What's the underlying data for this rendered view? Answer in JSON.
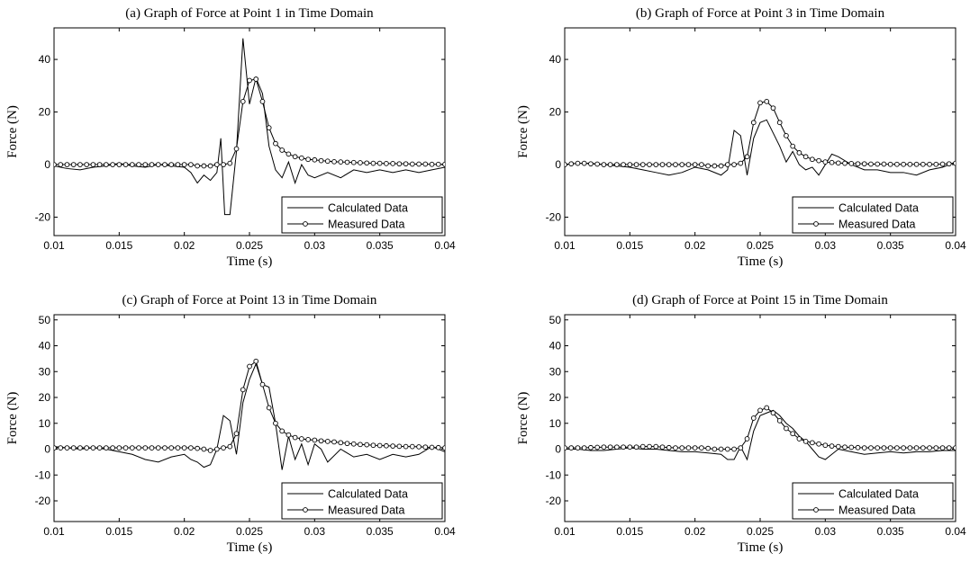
{
  "chart_data": [
    {
      "type": "line",
      "title": "(a) Graph of Force at Point 1 in Time Domain",
      "xlabel": "Time (s)",
      "ylabel": "Force (N)",
      "xlim": [
        0.01,
        0.04
      ],
      "ylim": [
        -27,
        52
      ],
      "xticks": [
        0.01,
        0.015,
        0.02,
        0.025,
        0.03,
        0.035,
        0.04
      ],
      "xtick_labels": [
        "0.01",
        "0.015",
        "0.02",
        "0.025",
        "0.03",
        "0.035",
        "0.04"
      ],
      "yticks": [
        -20,
        0,
        20,
        40
      ],
      "ytick_labels": [
        "-20",
        "0",
        "20",
        "40"
      ],
      "legend_position": "bottom-right",
      "grid": false,
      "series": [
        {
          "name": "Calculated Data",
          "marker": "none",
          "x": [
            0.01,
            0.011,
            0.012,
            0.013,
            0.014,
            0.015,
            0.016,
            0.017,
            0.018,
            0.019,
            0.02,
            0.0205,
            0.021,
            0.0215,
            0.022,
            0.0225,
            0.0228,
            0.0231,
            0.0235,
            0.024,
            0.0245,
            0.025,
            0.0255,
            0.026,
            0.0265,
            0.027,
            0.0275,
            0.028,
            0.0285,
            0.029,
            0.0295,
            0.03,
            0.031,
            0.032,
            0.033,
            0.034,
            0.035,
            0.036,
            0.037,
            0.038,
            0.039,
            0.04
          ],
          "y": [
            -0.5,
            -1.5,
            -2,
            -1,
            -0.5,
            0.5,
            -0.5,
            -1,
            0,
            -0.5,
            -1,
            -3,
            -7,
            -4,
            -6,
            -3,
            10,
            -19,
            -19,
            5,
            48,
            23,
            33,
            27,
            7,
            -2,
            -5,
            1,
            -7,
            0,
            -4,
            -5,
            -3,
            -5,
            -2,
            -3,
            -2,
            -3,
            -2,
            -3,
            -2,
            -1
          ]
        },
        {
          "name": "Measured Data",
          "marker": "circle",
          "x": [
            0.01,
            0.0105,
            0.011,
            0.0115,
            0.012,
            0.0125,
            0.013,
            0.0135,
            0.014,
            0.0145,
            0.015,
            0.0155,
            0.016,
            0.0165,
            0.017,
            0.0175,
            0.018,
            0.0185,
            0.019,
            0.0195,
            0.02,
            0.0205,
            0.021,
            0.0215,
            0.022,
            0.0225,
            0.023,
            0.0235,
            0.024,
            0.0245,
            0.025,
            0.0255,
            0.026,
            0.0265,
            0.027,
            0.0275,
            0.028,
            0.0285,
            0.029,
            0.0295,
            0.03,
            0.0305,
            0.031,
            0.0315,
            0.032,
            0.0325,
            0.033,
            0.0335,
            0.034,
            0.0345,
            0.035,
            0.0355,
            0.036,
            0.0365,
            0.037,
            0.0375,
            0.038,
            0.0385,
            0.039,
            0.0395,
            0.04
          ],
          "y": [
            0,
            0,
            0,
            0,
            0,
            0,
            0,
            0,
            0,
            0,
            0,
            0,
            0,
            0,
            0,
            0,
            0,
            0,
            0,
            0,
            0,
            0,
            -0.5,
            -0.5,
            -0.5,
            0,
            0,
            0.5,
            6,
            24,
            32,
            32.5,
            24,
            14,
            8,
            5.5,
            4,
            3,
            2.5,
            2,
            1.8,
            1.5,
            1.3,
            1.1,
            1,
            0.9,
            0.8,
            0.7,
            0.6,
            0.5,
            0.5,
            0.4,
            0.4,
            0.3,
            0.3,
            0.2,
            0.2,
            0.2,
            0.1,
            0.1,
            0.1
          ]
        }
      ]
    },
    {
      "type": "line",
      "title": "(b) Graph of Force at Point 3 in Time Domain",
      "xlabel": "Time (s)",
      "ylabel": "Force (N)",
      "xlim": [
        0.01,
        0.04
      ],
      "ylim": [
        -27,
        52
      ],
      "xticks": [
        0.01,
        0.015,
        0.02,
        0.025,
        0.03,
        0.035,
        0.04
      ],
      "xtick_labels": [
        "0.01",
        "0.015",
        "0.02",
        "0.025",
        "0.03",
        "0.035",
        "0.04"
      ],
      "yticks": [
        -20,
        0,
        20,
        40
      ],
      "ytick_labels": [
        "-20",
        "0",
        "20",
        "40"
      ],
      "legend_position": "bottom-right",
      "grid": false,
      "series": [
        {
          "name": "Calculated Data",
          "marker": "none",
          "x": [
            0.01,
            0.011,
            0.012,
            0.013,
            0.014,
            0.015,
            0.016,
            0.017,
            0.018,
            0.019,
            0.02,
            0.021,
            0.022,
            0.0225,
            0.023,
            0.0235,
            0.024,
            0.0245,
            0.025,
            0.0255,
            0.026,
            0.0265,
            0.027,
            0.0275,
            0.028,
            0.0285,
            0.029,
            0.0295,
            0.03,
            0.0305,
            0.031,
            0.032,
            0.033,
            0.034,
            0.035,
            0.036,
            0.037,
            0.038,
            0.039,
            0.04
          ],
          "y": [
            0,
            0.5,
            0.5,
            0,
            -0.5,
            -1,
            -2,
            -3,
            -4,
            -3,
            -1,
            -2,
            -4,
            -2,
            13,
            11,
            -4,
            10,
            16,
            17,
            12,
            7,
            1,
            5,
            0,
            -2,
            -1,
            -4,
            0,
            4,
            3,
            0,
            -2,
            -2,
            -3,
            -3,
            -4,
            -2,
            -1,
            1
          ]
        },
        {
          "name": "Measured Data",
          "marker": "circle",
          "x": [
            0.01,
            0.0105,
            0.011,
            0.0115,
            0.012,
            0.0125,
            0.013,
            0.0135,
            0.014,
            0.0145,
            0.015,
            0.0155,
            0.016,
            0.0165,
            0.017,
            0.0175,
            0.018,
            0.0185,
            0.019,
            0.0195,
            0.02,
            0.0205,
            0.021,
            0.0215,
            0.022,
            0.0225,
            0.023,
            0.0235,
            0.024,
            0.0245,
            0.025,
            0.0255,
            0.026,
            0.0265,
            0.027,
            0.0275,
            0.028,
            0.0285,
            0.029,
            0.0295,
            0.03,
            0.0305,
            0.031,
            0.0315,
            0.032,
            0.0325,
            0.033,
            0.0335,
            0.034,
            0.0345,
            0.035,
            0.0355,
            0.036,
            0.0365,
            0.037,
            0.0375,
            0.038,
            0.0385,
            0.039,
            0.0395,
            0.04
          ],
          "y": [
            0,
            0.3,
            0.5,
            0.5,
            0.3,
            0.2,
            0,
            0,
            0,
            0,
            0,
            0,
            0,
            0,
            0,
            0,
            0,
            0,
            0,
            0,
            0,
            0,
            -0.5,
            -0.5,
            -0.5,
            0,
            0,
            0.5,
            3,
            16,
            23.5,
            24,
            21.5,
            16,
            11,
            7,
            4.5,
            3,
            2,
            1.5,
            1,
            0.8,
            0.6,
            0.5,
            0.4,
            0.3,
            0.3,
            0.2,
            0.2,
            0.2,
            0.1,
            0.1,
            0.1,
            0.1,
            0.1,
            0.1,
            0.1,
            0.1,
            0.2,
            0.3,
            0.5
          ]
        }
      ]
    },
    {
      "type": "line",
      "title": "(c) Graph of Force at Point 13 in Time Domain",
      "xlabel": "Time (s)",
      "ylabel": "Force (N)",
      "xlim": [
        0.01,
        0.04
      ],
      "ylim": [
        -28,
        52
      ],
      "xticks": [
        0.01,
        0.015,
        0.02,
        0.025,
        0.03,
        0.035,
        0.04
      ],
      "xtick_labels": [
        "0.01",
        "0.015",
        "0.02",
        "0.025",
        "0.03",
        "0.035",
        "0.04"
      ],
      "yticks": [
        -20,
        -10,
        0,
        10,
        20,
        30,
        40,
        50
      ],
      "ytick_labels": [
        "-20",
        "-10",
        "0",
        "10",
        "20",
        "30",
        "40",
        "50"
      ],
      "legend_position": "bottom-right",
      "grid": false,
      "series": [
        {
          "name": "Calculated Data",
          "marker": "none",
          "x": [
            0.01,
            0.011,
            0.012,
            0.013,
            0.014,
            0.015,
            0.016,
            0.017,
            0.018,
            0.019,
            0.02,
            0.0205,
            0.021,
            0.0215,
            0.022,
            0.0225,
            0.023,
            0.0235,
            0.024,
            0.0245,
            0.025,
            0.0255,
            0.026,
            0.0265,
            0.027,
            0.0275,
            0.028,
            0.0285,
            0.029,
            0.0295,
            0.03,
            0.0305,
            0.031,
            0.032,
            0.033,
            0.034,
            0.035,
            0.036,
            0.037,
            0.038,
            0.039,
            0.04
          ],
          "y": [
            1,
            0.5,
            0,
            0.5,
            0,
            -1,
            -2,
            -4,
            -5,
            -3,
            -2,
            -4,
            -5,
            -7,
            -6,
            0,
            13,
            11,
            -2,
            18,
            27,
            33,
            25,
            24,
            10,
            -8,
            5,
            -4,
            2,
            -6,
            2,
            0,
            -5,
            0,
            -3,
            -2,
            -4,
            -2,
            -3,
            -2,
            1,
            -1
          ]
        },
        {
          "name": "Measured Data",
          "marker": "circle",
          "x": [
            0.01,
            0.0105,
            0.011,
            0.0115,
            0.012,
            0.0125,
            0.013,
            0.0135,
            0.014,
            0.0145,
            0.015,
            0.0155,
            0.016,
            0.0165,
            0.017,
            0.0175,
            0.018,
            0.0185,
            0.019,
            0.0195,
            0.02,
            0.0205,
            0.021,
            0.0215,
            0.022,
            0.0225,
            0.023,
            0.0235,
            0.024,
            0.0245,
            0.025,
            0.0255,
            0.026,
            0.0265,
            0.027,
            0.0275,
            0.028,
            0.0285,
            0.029,
            0.0295,
            0.03,
            0.0305,
            0.031,
            0.0315,
            0.032,
            0.0325,
            0.033,
            0.0335,
            0.034,
            0.0345,
            0.035,
            0.0355,
            0.036,
            0.0365,
            0.037,
            0.0375,
            0.038,
            0.0385,
            0.039,
            0.0395,
            0.04
          ],
          "y": [
            0.5,
            0.5,
            0.5,
            0.5,
            0.5,
            0.5,
            0.5,
            0.5,
            0.5,
            0.5,
            0.5,
            0.5,
            0.5,
            0.5,
            0.5,
            0.5,
            0.5,
            0.5,
            0.5,
            0.5,
            0.5,
            0.5,
            0.3,
            0,
            -0.5,
            0,
            0.5,
            1,
            6,
            23,
            32,
            34,
            25,
            16,
            10,
            7,
            5.5,
            4.5,
            4,
            3.7,
            3.5,
            3.2,
            3,
            2.8,
            2.5,
            2.2,
            2,
            1.8,
            1.7,
            1.5,
            1.4,
            1.3,
            1.2,
            1.1,
            1,
            1,
            0.9,
            0.8,
            0.7,
            0.6,
            0.5
          ]
        }
      ]
    },
    {
      "type": "line",
      "title": "(d) Graph of Force at Point 15 in Time Domain",
      "xlabel": "Time (s)",
      "ylabel": "Force (N)",
      "xlim": [
        0.01,
        0.04
      ],
      "ylim": [
        -28,
        52
      ],
      "xticks": [
        0.01,
        0.015,
        0.02,
        0.025,
        0.03,
        0.035,
        0.04
      ],
      "xtick_labels": [
        "0.01",
        "0.015",
        "0.02",
        "0.025",
        "0.03",
        "0.035",
        "0.04"
      ],
      "yticks": [
        -20,
        -10,
        0,
        10,
        20,
        30,
        40,
        50
      ],
      "ytick_labels": [
        "-20",
        "-10",
        "0",
        "10",
        "20",
        "30",
        "40",
        "50"
      ],
      "legend_position": "bottom-right",
      "grid": false,
      "series": [
        {
          "name": "Calculated Data",
          "marker": "none",
          "x": [
            0.01,
            0.011,
            0.012,
            0.013,
            0.014,
            0.015,
            0.016,
            0.017,
            0.018,
            0.019,
            0.02,
            0.021,
            0.022,
            0.0225,
            0.023,
            0.0235,
            0.024,
            0.0245,
            0.025,
            0.0255,
            0.026,
            0.0265,
            0.027,
            0.0275,
            0.028,
            0.0285,
            0.029,
            0.0295,
            0.03,
            0.0305,
            0.031,
            0.032,
            0.033,
            0.034,
            0.035,
            0.036,
            0.037,
            0.038,
            0.039,
            0.04
          ],
          "y": [
            0,
            0,
            -0.5,
            -0.5,
            0,
            0.5,
            0,
            0,
            -0.5,
            -1,
            -1,
            -1.5,
            -2,
            -4,
            -4,
            1,
            -4,
            7,
            13,
            14,
            15,
            13,
            10,
            8,
            5,
            3,
            0,
            -3,
            -4,
            -2,
            0,
            -1,
            -2,
            -1.5,
            -1,
            -1.5,
            -1,
            -1,
            -0.5,
            -0.5
          ]
        },
        {
          "name": "Measured Data",
          "marker": "circle",
          "x": [
            0.01,
            0.0105,
            0.011,
            0.0115,
            0.012,
            0.0125,
            0.013,
            0.0135,
            0.014,
            0.0145,
            0.015,
            0.0155,
            0.016,
            0.0165,
            0.017,
            0.0175,
            0.018,
            0.0185,
            0.019,
            0.0195,
            0.02,
            0.0205,
            0.021,
            0.0215,
            0.022,
            0.0225,
            0.023,
            0.0235,
            0.024,
            0.0245,
            0.025,
            0.0255,
            0.026,
            0.0265,
            0.027,
            0.0275,
            0.028,
            0.0285,
            0.029,
            0.0295,
            0.03,
            0.0305,
            0.031,
            0.0315,
            0.032,
            0.0325,
            0.033,
            0.0335,
            0.034,
            0.0345,
            0.035,
            0.0355,
            0.036,
            0.0365,
            0.037,
            0.0375,
            0.038,
            0.0385,
            0.039,
            0.0395,
            0.04
          ],
          "y": [
            0.5,
            0.5,
            0.5,
            0.5,
            0.6,
            0.7,
            0.8,
            0.8,
            0.8,
            0.8,
            0.8,
            0.8,
            1,
            1,
            1,
            0.8,
            0.6,
            0.5,
            0.5,
            0.5,
            0.5,
            0.5,
            0.3,
            0,
            0,
            0,
            0,
            0.5,
            4,
            12,
            15,
            16,
            14,
            11,
            8,
            6,
            4,
            3,
            2.5,
            2,
            1.5,
            1.2,
            1,
            0.8,
            0.7,
            0.6,
            0.5,
            0.5,
            0.5,
            0.5,
            0.5,
            0.5,
            0.5,
            0.5,
            0.5,
            0.5,
            0.5,
            0.5,
            0.5,
            0.5,
            0.5
          ]
        }
      ]
    }
  ]
}
